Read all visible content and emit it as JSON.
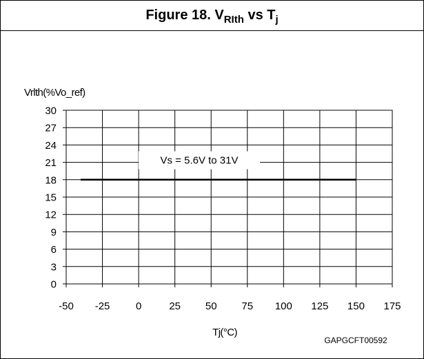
{
  "figure": {
    "title_prefix": "Figure 18. V",
    "title_sub1": "RIth",
    "title_mid": " vs T",
    "title_sub2": "j"
  },
  "chart_data": {
    "type": "line",
    "ylabel": "Vrlth(%Vo_ref)",
    "xlabel": "Tj(°C)",
    "xlim": [
      -50,
      175
    ],
    "ylim": [
      0,
      30
    ],
    "xticks": [
      -50,
      -25,
      0,
      25,
      50,
      75,
      100,
      125,
      150,
      175
    ],
    "yticks": [
      0,
      3,
      6,
      9,
      12,
      15,
      18,
      21,
      24,
      27,
      30
    ],
    "grid": true,
    "series": [
      {
        "name": "Vs = 5.6V to 31V",
        "x": [
          -40,
          150
        ],
        "y": [
          18,
          18
        ],
        "color": "#000000"
      }
    ],
    "annotation": "Vs = 5.6V to 31V",
    "code": "GAPGCFT00592"
  }
}
